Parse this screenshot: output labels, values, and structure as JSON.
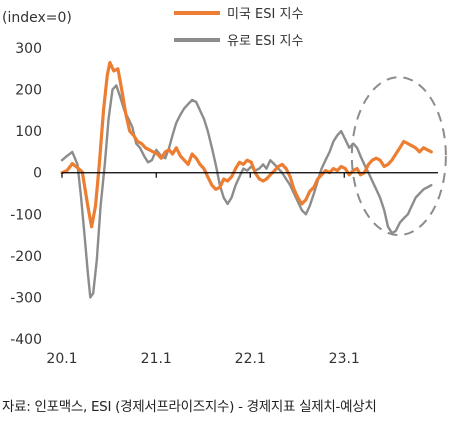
{
  "unit_label": "(index=0)",
  "source_note": "자료: 인포맥스, ESI (경제서프라이즈지수) - 경제지표 실제치-예상치",
  "colors": {
    "us": "#ED7D31",
    "euro": "#8C8C8C",
    "axis": "#000000",
    "highlight": "#8C8C8C"
  },
  "highlight": {
    "shape": "dashed-ellipse",
    "x_center": "2023-08",
    "y_center": 40,
    "x_range": [
      "2023-01",
      "2023-12"
    ],
    "y_range": [
      -200,
      180
    ]
  },
  "chart_data": {
    "type": "line",
    "title": "",
    "xlabel": "",
    "ylabel": "(index=0)",
    "ylim": [
      -400,
      300
    ],
    "xlim": [
      "2020-01",
      "2023-12"
    ],
    "y_ticks": [
      300,
      200,
      100,
      0,
      -100,
      -200,
      -300,
      -400
    ],
    "x_ticks": [
      "20.1",
      "21.1",
      "22.1",
      "23.1"
    ],
    "x_tick_dates": [
      "2020-01",
      "2021-01",
      "2022-01",
      "2023-01"
    ],
    "legend": {
      "position": "top-right"
    },
    "grid": false,
    "series": [
      {
        "name": "미국 ESI 지수",
        "color": "#ED7D31",
        "points": [
          [
            "2020-01-01",
            0
          ],
          [
            "2020-01-20",
            5
          ],
          [
            "2020-02-10",
            22
          ],
          [
            "2020-03-01",
            12
          ],
          [
            "2020-03-20",
            2
          ],
          [
            "2020-04-10",
            -80
          ],
          [
            "2020-04-25",
            -130
          ],
          [
            "2020-05-10",
            -80
          ],
          [
            "2020-05-25",
            20
          ],
          [
            "2020-06-10",
            150
          ],
          [
            "2020-06-25",
            235
          ],
          [
            "2020-07-05",
            265
          ],
          [
            "2020-07-20",
            245
          ],
          [
            "2020-08-05",
            250
          ],
          [
            "2020-08-20",
            200
          ],
          [
            "2020-09-05",
            140
          ],
          [
            "2020-09-20",
            100
          ],
          [
            "2020-10-05",
            90
          ],
          [
            "2020-10-20",
            75
          ],
          [
            "2020-11-05",
            70
          ],
          [
            "2020-11-20",
            60
          ],
          [
            "2020-12-05",
            55
          ],
          [
            "2020-12-20",
            50
          ],
          [
            "2021-01-05",
            45
          ],
          [
            "2021-01-20",
            35
          ],
          [
            "2021-02-05",
            50
          ],
          [
            "2021-02-20",
            55
          ],
          [
            "2021-03-05",
            45
          ],
          [
            "2021-03-20",
            60
          ],
          [
            "2021-04-05",
            40
          ],
          [
            "2021-04-20",
            30
          ],
          [
            "2021-05-05",
            20
          ],
          [
            "2021-05-20",
            45
          ],
          [
            "2021-06-05",
            35
          ],
          [
            "2021-06-20",
            20
          ],
          [
            "2021-07-05",
            10
          ],
          [
            "2021-07-20",
            -10
          ],
          [
            "2021-08-05",
            -30
          ],
          [
            "2021-08-20",
            -40
          ],
          [
            "2021-09-05",
            -35
          ],
          [
            "2021-09-20",
            -15
          ],
          [
            "2021-10-05",
            -20
          ],
          [
            "2021-10-20",
            -10
          ],
          [
            "2021-11-05",
            10
          ],
          [
            "2021-11-20",
            25
          ],
          [
            "2021-12-05",
            20
          ],
          [
            "2021-12-20",
            30
          ],
          [
            "2022-01-05",
            25
          ],
          [
            "2022-01-20",
            0
          ],
          [
            "2022-02-05",
            -15
          ],
          [
            "2022-02-20",
            -20
          ],
          [
            "2022-03-05",
            -15
          ],
          [
            "2022-03-20",
            -5
          ],
          [
            "2022-04-05",
            5
          ],
          [
            "2022-04-20",
            15
          ],
          [
            "2022-05-05",
            20
          ],
          [
            "2022-05-20",
            10
          ],
          [
            "2022-06-05",
            -10
          ],
          [
            "2022-06-20",
            -40
          ],
          [
            "2022-07-05",
            -60
          ],
          [
            "2022-07-20",
            -75
          ],
          [
            "2022-08-05",
            -65
          ],
          [
            "2022-08-20",
            -45
          ],
          [
            "2022-09-05",
            -35
          ],
          [
            "2022-09-20",
            -15
          ],
          [
            "2022-10-05",
            -5
          ],
          [
            "2022-10-20",
            5
          ],
          [
            "2022-11-05",
            0
          ],
          [
            "2022-11-20",
            10
          ],
          [
            "2022-12-05",
            5
          ],
          [
            "2022-12-20",
            15
          ],
          [
            "2023-01-05",
            10
          ],
          [
            "2023-01-20",
            -5
          ],
          [
            "2023-02-05",
            5
          ],
          [
            "2023-02-20",
            10
          ],
          [
            "2023-03-05",
            -5
          ],
          [
            "2023-03-20",
            0
          ],
          [
            "2023-04-05",
            20
          ],
          [
            "2023-04-20",
            30
          ],
          [
            "2023-05-05",
            35
          ],
          [
            "2023-05-20",
            30
          ],
          [
            "2023-06-05",
            15
          ],
          [
            "2023-06-20",
            20
          ],
          [
            "2023-07-05",
            30
          ],
          [
            "2023-07-20",
            45
          ],
          [
            "2023-08-05",
            60
          ],
          [
            "2023-08-20",
            75
          ],
          [
            "2023-09-05",
            70
          ],
          [
            "2023-09-20",
            65
          ],
          [
            "2023-10-05",
            60
          ],
          [
            "2023-10-20",
            50
          ],
          [
            "2023-11-05",
            60
          ],
          [
            "2023-11-20",
            55
          ],
          [
            "2023-12-05",
            50
          ]
        ]
      },
      {
        "name": "유로 ESI 지수",
        "color": "#8C8C8C",
        "points": [
          [
            "2020-01-01",
            30
          ],
          [
            "2020-01-20",
            40
          ],
          [
            "2020-02-10",
            50
          ],
          [
            "2020-03-01",
            20
          ],
          [
            "2020-03-15",
            -60
          ],
          [
            "2020-03-30",
            -160
          ],
          [
            "2020-04-10",
            -240
          ],
          [
            "2020-04-20",
            -300
          ],
          [
            "2020-05-01",
            -290
          ],
          [
            "2020-05-15",
            -210
          ],
          [
            "2020-05-30",
            -80
          ],
          [
            "2020-06-15",
            20
          ],
          [
            "2020-06-30",
            130
          ],
          [
            "2020-07-15",
            200
          ],
          [
            "2020-07-30",
            210
          ],
          [
            "2020-08-15",
            180
          ],
          [
            "2020-08-30",
            150
          ],
          [
            "2020-09-15",
            130
          ],
          [
            "2020-09-30",
            110
          ],
          [
            "2020-10-15",
            70
          ],
          [
            "2020-10-30",
            60
          ],
          [
            "2020-11-15",
            40
          ],
          [
            "2020-11-30",
            25
          ],
          [
            "2020-12-15",
            30
          ],
          [
            "2021-01-01",
            55
          ],
          [
            "2021-01-20",
            40
          ],
          [
            "2021-02-05",
            35
          ],
          [
            "2021-02-20",
            60
          ],
          [
            "2021-03-05",
            90
          ],
          [
            "2021-03-20",
            120
          ],
          [
            "2021-04-05",
            140
          ],
          [
            "2021-04-20",
            155
          ],
          [
            "2021-05-05",
            165
          ],
          [
            "2021-05-20",
            175
          ],
          [
            "2021-06-05",
            170
          ],
          [
            "2021-06-20",
            150
          ],
          [
            "2021-07-05",
            130
          ],
          [
            "2021-07-20",
            100
          ],
          [
            "2021-08-05",
            60
          ],
          [
            "2021-08-20",
            20
          ],
          [
            "2021-09-05",
            -30
          ],
          [
            "2021-09-20",
            -60
          ],
          [
            "2021-10-05",
            -75
          ],
          [
            "2021-10-20",
            -60
          ],
          [
            "2021-11-05",
            -30
          ],
          [
            "2021-11-20",
            -10
          ],
          [
            "2021-12-05",
            10
          ],
          [
            "2021-12-20",
            5
          ],
          [
            "2022-01-05",
            15
          ],
          [
            "2022-01-20",
            5
          ],
          [
            "2022-02-05",
            10
          ],
          [
            "2022-02-20",
            20
          ],
          [
            "2022-03-05",
            10
          ],
          [
            "2022-03-20",
            30
          ],
          [
            "2022-04-05",
            20
          ],
          [
            "2022-04-20",
            10
          ],
          [
            "2022-05-05",
            0
          ],
          [
            "2022-05-20",
            -15
          ],
          [
            "2022-06-05",
            -30
          ],
          [
            "2022-06-20",
            -50
          ],
          [
            "2022-07-05",
            -70
          ],
          [
            "2022-07-20",
            -90
          ],
          [
            "2022-08-05",
            -100
          ],
          [
            "2022-08-20",
            -80
          ],
          [
            "2022-09-05",
            -50
          ],
          [
            "2022-09-20",
            -20
          ],
          [
            "2022-10-05",
            10
          ],
          [
            "2022-10-20",
            30
          ],
          [
            "2022-11-05",
            50
          ],
          [
            "2022-11-20",
            75
          ],
          [
            "2022-12-05",
            90
          ],
          [
            "2022-12-20",
            100
          ],
          [
            "2023-01-05",
            80
          ],
          [
            "2023-01-20",
            60
          ],
          [
            "2023-02-05",
            70
          ],
          [
            "2023-02-20",
            60
          ],
          [
            "2023-03-05",
            40
          ],
          [
            "2023-03-20",
            20
          ],
          [
            "2023-04-05",
            0
          ],
          [
            "2023-04-20",
            -20
          ],
          [
            "2023-05-05",
            -40
          ],
          [
            "2023-05-20",
            -60
          ],
          [
            "2023-06-05",
            -90
          ],
          [
            "2023-06-20",
            -130
          ],
          [
            "2023-07-05",
            -145
          ],
          [
            "2023-07-20",
            -140
          ],
          [
            "2023-08-05",
            -120
          ],
          [
            "2023-08-20",
            -110
          ],
          [
            "2023-09-05",
            -100
          ],
          [
            "2023-09-20",
            -80
          ],
          [
            "2023-10-05",
            -60
          ],
          [
            "2023-10-20",
            -50
          ],
          [
            "2023-11-05",
            -40
          ],
          [
            "2023-11-20",
            -35
          ],
          [
            "2023-12-05",
            -30
          ]
        ]
      }
    ]
  }
}
